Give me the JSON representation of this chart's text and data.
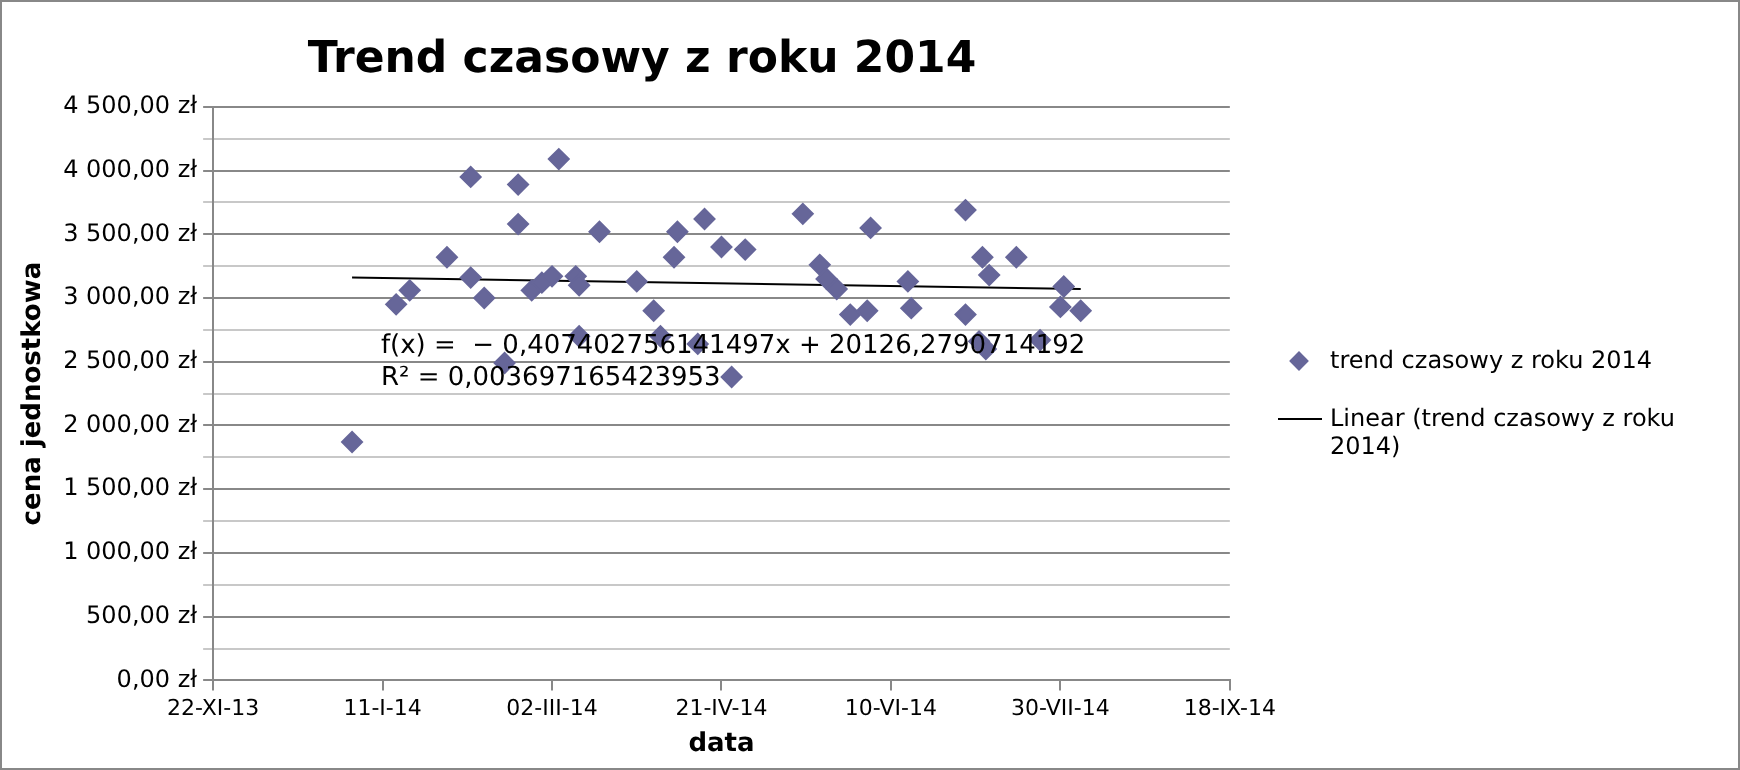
{
  "chart_data": {
    "type": "scatter",
    "title": "Trend czasowy z roku 2014",
    "xlabel": "data",
    "ylabel": "cena jednostkowa",
    "annotations": [
      "f(x) =  − 0,407402756141497x + 20126,2790714192",
      "R² = 0,003697165423953"
    ],
    "series": [
      {
        "name": "trend czasowy z roku 2014",
        "marker": "diamond",
        "color": "#666699",
        "x": [
          "2014-01-02",
          "2014-01-15",
          "2014-01-19",
          "2014-01-30",
          "2014-02-06",
          "2014-02-06",
          "2014-02-10",
          "2014-02-16",
          "2014-02-20",
          "2014-02-20",
          "2014-02-24",
          "2014-02-27",
          "2014-03-02",
          "2014-03-04",
          "2014-03-09",
          "2014-03-10",
          "2014-03-10",
          "2014-03-16",
          "2014-03-27",
          "2014-04-01",
          "2014-04-03",
          "2014-04-07",
          "2014-04-08",
          "2014-04-14",
          "2014-04-16",
          "2014-04-21",
          "2014-04-24",
          "2014-04-28",
          "2014-05-15",
          "2014-05-20",
          "2014-05-22",
          "2014-05-25",
          "2014-05-29",
          "2014-06-03",
          "2014-06-04",
          "2014-06-15",
          "2014-06-16",
          "2014-07-02",
          "2014-07-02",
          "2014-07-06",
          "2014-07-07",
          "2014-07-08",
          "2014-07-09",
          "2014-07-17",
          "2014-07-24",
          "2014-07-30",
          "2014-07-31",
          "2014-08-05"
        ],
        "values": [
          1870,
          2950,
          3060,
          3320,
          3950,
          3160,
          3000,
          2490,
          3890,
          3580,
          3060,
          3120,
          3170,
          4090,
          3170,
          3100,
          2700,
          3520,
          3130,
          2900,
          2700,
          3320,
          3520,
          2640,
          3620,
          3400,
          2380,
          3380,
          3660,
          3260,
          3150,
          3070,
          2870,
          2900,
          3550,
          3130,
          2920,
          3690,
          2870,
          2660,
          3320,
          2600,
          3180,
          3320,
          2670,
          2930,
          3090,
          2900
        ]
      },
      {
        "name": "Linear (trend czasowy z roku 2014)",
        "type": "line",
        "color": "#000000",
        "marker": "none",
        "x": [
          "2014-01-02",
          "2014-08-05"
        ],
        "values": [
          3160,
          3070
        ]
      }
    ],
    "xlim": [
      "2013-11-22",
      "2014-09-18"
    ],
    "xticks": [
      {
        "value": "2013-11-22",
        "label": "22-XI-13"
      },
      {
        "value": "2014-01-11",
        "label": "11-I-14"
      },
      {
        "value": "2014-03-02",
        "label": "02-III-14"
      },
      {
        "value": "2014-04-21",
        "label": "21-IV-14"
      },
      {
        "value": "2014-06-10",
        "label": "10-VI-14"
      },
      {
        "value": "2014-07-30",
        "label": "30-VII-14"
      },
      {
        "value": "2014-09-18",
        "label": "18-IX-14"
      }
    ],
    "ylim": [
      0,
      4500
    ],
    "yticks": [
      {
        "value": 0,
        "label": "0,00 zł"
      },
      {
        "value": 250,
        "label": null
      },
      {
        "value": 500,
        "label": "500,00 zł"
      },
      {
        "value": 750,
        "label": null
      },
      {
        "value": 1000,
        "label": "1 000,00 zł"
      },
      {
        "value": 1250,
        "label": null
      },
      {
        "value": 1500,
        "label": "1 500,00 zł"
      },
      {
        "value": 1750,
        "label": null
      },
      {
        "value": 2000,
        "label": "2 000,00 zł"
      },
      {
        "value": 2250,
        "label": null
      },
      {
        "value": 2500,
        "label": "2 500,00 zł"
      },
      {
        "value": 2750,
        "label": null
      },
      {
        "value": 3000,
        "label": "3 000,00 zł"
      },
      {
        "value": 3250,
        "label": null
      },
      {
        "value": 3500,
        "label": "3 500,00 zł"
      },
      {
        "value": 3750,
        "label": null
      },
      {
        "value": 4000,
        "label": "4 000,00 zł"
      },
      {
        "value": 4250,
        "label": null
      },
      {
        "value": 4500,
        "label": "4 500,00 zł"
      }
    ],
    "grid": "y",
    "legend": "right"
  }
}
